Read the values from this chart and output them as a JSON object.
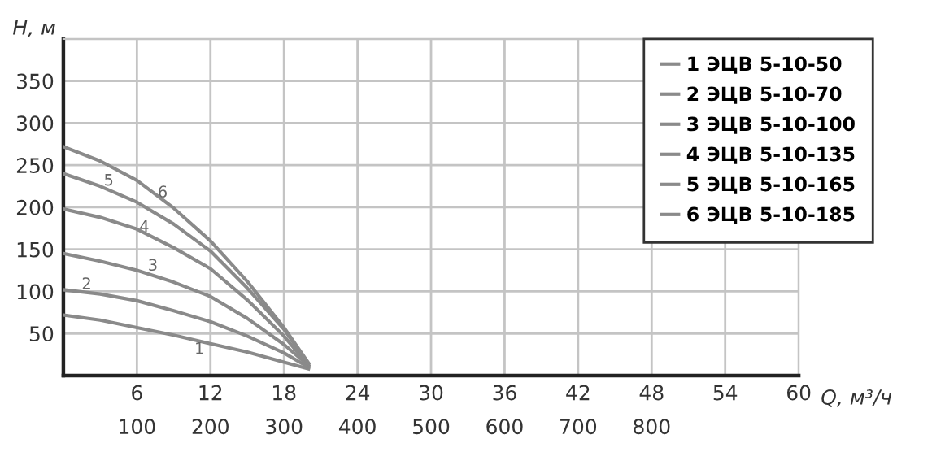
{
  "chart_data": {
    "type": "line",
    "xlabel": "Q, м³/ч",
    "ylabel": "H, м",
    "x": [
      0,
      3,
      6,
      9,
      12,
      15,
      18,
      20
    ],
    "series": [
      {
        "name": "1 ЭЦВ 5-10-50",
        "color": "#8a8a8a",
        "values": [
          72,
          66,
          57,
          48,
          38,
          28,
          16,
          8
        ]
      },
      {
        "name": "2 ЭЦВ 5-10-70",
        "color": "#8a8a8a",
        "values": [
          102,
          97,
          89,
          77,
          64,
          47,
          27,
          10
        ]
      },
      {
        "name": "3 ЭЦВ 5-10-100",
        "color": "#8a8a8a",
        "values": [
          145,
          136,
          125,
          111,
          94,
          68,
          37,
          12
        ]
      },
      {
        "name": "4 ЭЦВ 5-10-135",
        "color": "#8a8a8a",
        "values": [
          198,
          188,
          174,
          152,
          127,
          90,
          47,
          12
        ]
      },
      {
        "name": "5 ЭЦВ 5-10-165",
        "color": "#8a8a8a",
        "values": [
          240,
          225,
          206,
          180,
          148,
          104,
          55,
          14
        ]
      },
      {
        "name": "6 ЭЦВ 5-10-185",
        "color": "#8a8a8a",
        "values": [
          272,
          255,
          232,
          199,
          160,
          112,
          57,
          15
        ]
      }
    ],
    "annotations": [
      {
        "text": "1",
        "x": 11.1,
        "y": 31
      },
      {
        "text": "2",
        "x": 1.9,
        "y": 108
      },
      {
        "text": "3",
        "x": 7.3,
        "y": 130
      },
      {
        "text": "4",
        "x": 6.6,
        "y": 176
      },
      {
        "text": "5",
        "x": 3.7,
        "y": 231
      },
      {
        "text": "6",
        "x": 8.1,
        "y": 217
      }
    ],
    "xlim": [
      0,
      60
    ],
    "xticks": [
      6,
      12,
      18,
      24,
      30,
      36,
      42,
      48,
      54,
      60
    ],
    "x2lim": [
      0,
      1000
    ],
    "x2ticks": [
      100,
      200,
      300,
      400,
      500,
      600,
      700,
      800
    ],
    "ylim": [
      0,
      400
    ],
    "yticks": [
      50,
      100,
      150,
      200,
      250,
      300,
      350,
      {
        "value": 400,
        "label": null
      }
    ],
    "grid": true,
    "legend": "top right",
    "marker": "none",
    "line_style": "solid"
  }
}
